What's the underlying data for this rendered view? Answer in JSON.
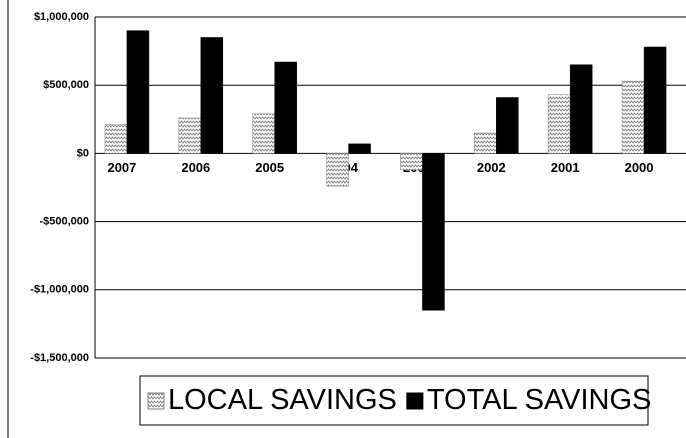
{
  "chart_data": {
    "type": "bar",
    "categories": [
      "2007",
      "2006",
      "2005",
      "2004",
      "2003",
      "2002",
      "2001",
      "2000"
    ],
    "series": [
      {
        "name": "LOCAL SAVINGS",
        "color": "#808080",
        "pattern": "zigzag",
        "values": [
          210000,
          260000,
          290000,
          -240000,
          -120000,
          150000,
          430000,
          530000
        ]
      },
      {
        "name": "TOTAL SAVINGS",
        "color": "#000000",
        "values": [
          900000,
          850000,
          670000,
          70000,
          -1150000,
          410000,
          650000,
          780000
        ]
      }
    ],
    "ylim": [
      -1500000,
      1000000
    ],
    "yticks": [
      {
        "value": -1500000,
        "label": "-$1,500,000"
      },
      {
        "value": -1000000,
        "label": "-$1,000,000"
      },
      {
        "value": -500000,
        "label": "-$500,000"
      },
      {
        "value": 0,
        "label": "$0"
      },
      {
        "value": 500000,
        "label": "$500,000"
      },
      {
        "value": 1000000,
        "label": "$1,000,000"
      }
    ],
    "grid": true,
    "legend": "bottom"
  }
}
